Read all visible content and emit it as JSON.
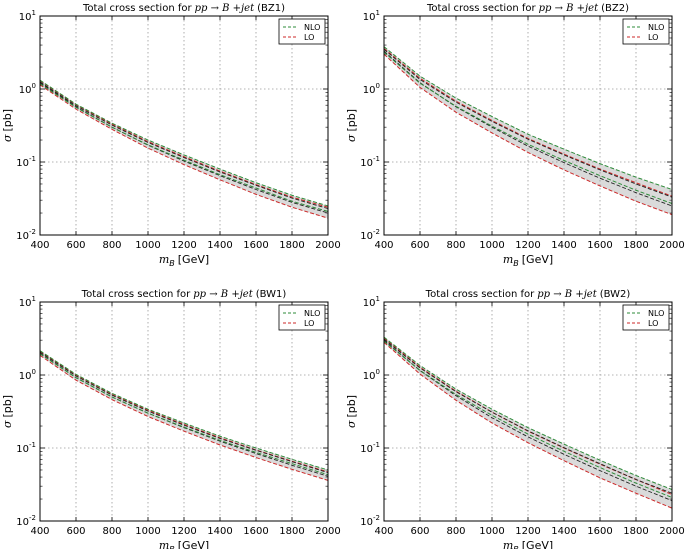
{
  "chart_data": [
    {
      "type": "line",
      "title_prefix": "Total cross section for",
      "title_process": "pp → B +jet",
      "title_suffix": "(BZ1)",
      "xlabel_sym": "m",
      "xlabel_sub": "B",
      "xlabel_unit": "[GeV]",
      "ylabel_sym": "σ",
      "ylabel_unit": "[pb]",
      "xlim": [
        400,
        2000
      ],
      "ylim": [
        0.01,
        10
      ],
      "yscale": "log",
      "grid": true,
      "legend_position": "top-right",
      "xticks": [
        "400",
        "600",
        "800",
        "1000",
        "1200",
        "1400",
        "1600",
        "1800",
        "2000"
      ],
      "yticks": [
        {
          "base": "10",
          "exp": "-2",
          "value": 0.01
        },
        {
          "base": "10",
          "exp": "-1",
          "value": 0.1
        },
        {
          "base": "10",
          "exp": "0",
          "value": 1
        },
        {
          "base": "10",
          "exp": "1",
          "value": 10
        }
      ],
      "x": [
        400,
        600,
        800,
        1000,
        1200,
        1400,
        1600,
        1800,
        2000
      ],
      "series": [
        {
          "name": "NLO",
          "color": "#2e8b3a",
          "upper": [
            1.32,
            0.62,
            0.34,
            0.2,
            0.125,
            0.08,
            0.052,
            0.035,
            0.025
          ],
          "central": [
            1.25,
            0.59,
            0.32,
            0.185,
            0.115,
            0.073,
            0.048,
            0.032,
            0.023
          ],
          "lower": [
            1.18,
            0.56,
            0.3,
            0.172,
            0.106,
            0.067,
            0.044,
            0.029,
            0.021
          ]
        },
        {
          "name": "LO",
          "color": "#cc2a2a",
          "upper": [
            1.3,
            0.61,
            0.33,
            0.19,
            0.118,
            0.075,
            0.049,
            0.033,
            0.024
          ],
          "central": [
            1.22,
            0.57,
            0.3,
            0.17,
            0.103,
            0.065,
            0.042,
            0.028,
            0.02
          ],
          "lower": [
            1.14,
            0.53,
            0.28,
            0.155,
            0.092,
            0.057,
            0.036,
            0.024,
            0.017
          ]
        }
      ]
    },
    {
      "type": "line",
      "title_prefix": "Total cross section for",
      "title_process": "pp → B +jet",
      "title_suffix": "(BZ2)",
      "xlabel_sym": "m",
      "xlabel_sub": "B",
      "xlabel_unit": "[GeV]",
      "ylabel_sym": "σ",
      "ylabel_unit": "[pb]",
      "xlim": [
        400,
        2000
      ],
      "ylim": [
        0.01,
        10
      ],
      "yscale": "log",
      "grid": true,
      "legend_position": "top-right",
      "xticks": [
        "400",
        "600",
        "800",
        "1000",
        "1200",
        "1400",
        "1600",
        "1800",
        "2000"
      ],
      "yticks": [
        {
          "base": "10",
          "exp": "-2",
          "value": 0.01
        },
        {
          "base": "10",
          "exp": "-1",
          "value": 0.1
        },
        {
          "base": "10",
          "exp": "0",
          "value": 1
        },
        {
          "base": "10",
          "exp": "1",
          "value": 10
        }
      ],
      "x": [
        400,
        600,
        800,
        1000,
        1200,
        1400,
        1600,
        1800,
        2000
      ],
      "series": [
        {
          "name": "NLO",
          "color": "#2e8b3a",
          "upper": [
            3.8,
            1.5,
            0.75,
            0.42,
            0.24,
            0.15,
            0.095,
            0.062,
            0.042
          ],
          "central": [
            3.5,
            1.35,
            0.66,
            0.36,
            0.205,
            0.125,
            0.078,
            0.05,
            0.033
          ],
          "lower": [
            3.2,
            1.2,
            0.58,
            0.31,
            0.175,
            0.105,
            0.065,
            0.041,
            0.027
          ]
        },
        {
          "name": "LO",
          "color": "#cc2a2a",
          "upper": [
            3.6,
            1.4,
            0.68,
            0.37,
            0.21,
            0.128,
            0.08,
            0.052,
            0.034
          ],
          "central": [
            3.3,
            1.22,
            0.57,
            0.3,
            0.165,
            0.098,
            0.06,
            0.038,
            0.025
          ],
          "lower": [
            3.0,
            1.05,
            0.48,
            0.25,
            0.135,
            0.078,
            0.047,
            0.029,
            0.019
          ]
        }
      ]
    },
    {
      "type": "line",
      "title_prefix": "Total cross section for",
      "title_process": "pp → B +jet",
      "title_suffix": "(BW1)",
      "xlabel_sym": "m",
      "xlabel_sub": "B",
      "xlabel_unit": "[GeV]",
      "ylabel_sym": "σ",
      "ylabel_unit": "[pb]",
      "xlim": [
        400,
        2000
      ],
      "ylim": [
        0.01,
        10
      ],
      "yscale": "log",
      "grid": true,
      "legend_position": "top-right",
      "xticks": [
        "400",
        "600",
        "800",
        "1000",
        "1200",
        "1400",
        "1600",
        "1800",
        "2000"
      ],
      "yticks": [
        {
          "base": "10",
          "exp": "-2",
          "value": 0.01
        },
        {
          "base": "10",
          "exp": "-1",
          "value": 0.1
        },
        {
          "base": "10",
          "exp": "0",
          "value": 1
        },
        {
          "base": "10",
          "exp": "1",
          "value": 10
        }
      ],
      "x": [
        400,
        600,
        800,
        1000,
        1200,
        1400,
        1600,
        1800,
        2000
      ],
      "series": [
        {
          "name": "NLO",
          "color": "#2e8b3a",
          "upper": [
            2.15,
            1.02,
            0.56,
            0.34,
            0.22,
            0.145,
            0.1,
            0.07,
            0.05
          ],
          "central": [
            2.05,
            0.97,
            0.53,
            0.32,
            0.205,
            0.135,
            0.093,
            0.065,
            0.046
          ],
          "lower": [
            1.95,
            0.92,
            0.5,
            0.3,
            0.193,
            0.127,
            0.087,
            0.061,
            0.043
          ]
        },
        {
          "name": "LO",
          "color": "#cc2a2a",
          "upper": [
            2.1,
            0.99,
            0.54,
            0.33,
            0.21,
            0.138,
            0.094,
            0.066,
            0.047
          ],
          "central": [
            1.98,
            0.92,
            0.5,
            0.3,
            0.19,
            0.124,
            0.084,
            0.058,
            0.041
          ],
          "lower": [
            1.86,
            0.85,
            0.46,
            0.27,
            0.17,
            0.11,
            0.074,
            0.051,
            0.036
          ]
        }
      ]
    },
    {
      "type": "line",
      "title_prefix": "Total cross section for",
      "title_process": "pp → B +jet",
      "title_suffix": "(BW2)",
      "xlabel_sym": "m",
      "xlabel_sub": "B",
      "xlabel_unit": "[GeV]",
      "ylabel_sym": "σ",
      "ylabel_unit": "[pb]",
      "xlim": [
        400,
        2000
      ],
      "ylim": [
        0.01,
        10
      ],
      "yscale": "log",
      "grid": true,
      "legend_position": "top-right",
      "xticks": [
        "400",
        "600",
        "800",
        "1000",
        "1200",
        "1400",
        "1600",
        "1800",
        "2000"
      ],
      "yticks": [
        {
          "base": "10",
          "exp": "-2",
          "value": 0.01
        },
        {
          "base": "10",
          "exp": "-1",
          "value": 0.1
        },
        {
          "base": "10",
          "exp": "0",
          "value": 1
        },
        {
          "base": "10",
          "exp": "1",
          "value": 10
        }
      ],
      "x": [
        400,
        600,
        800,
        1000,
        1200,
        1400,
        1600,
        1800,
        2000
      ],
      "series": [
        {
          "name": "NLO",
          "color": "#2e8b3a",
          "upper": [
            3.3,
            1.35,
            0.64,
            0.34,
            0.19,
            0.113,
            0.068,
            0.042,
            0.027
          ],
          "central": [
            3.1,
            1.25,
            0.59,
            0.31,
            0.172,
            0.101,
            0.061,
            0.037,
            0.024
          ],
          "lower": [
            2.9,
            1.16,
            0.54,
            0.28,
            0.155,
            0.09,
            0.054,
            0.033,
            0.021
          ]
        },
        {
          "name": "LO",
          "color": "#cc2a2a",
          "upper": [
            3.2,
            1.28,
            0.6,
            0.31,
            0.17,
            0.1,
            0.06,
            0.037,
            0.023
          ],
          "central": [
            3.0,
            1.15,
            0.52,
            0.26,
            0.142,
            0.082,
            0.049,
            0.03,
            0.019
          ],
          "lower": [
            2.8,
            1.03,
            0.45,
            0.22,
            0.118,
            0.067,
            0.039,
            0.024,
            0.015
          ]
        }
      ]
    }
  ]
}
